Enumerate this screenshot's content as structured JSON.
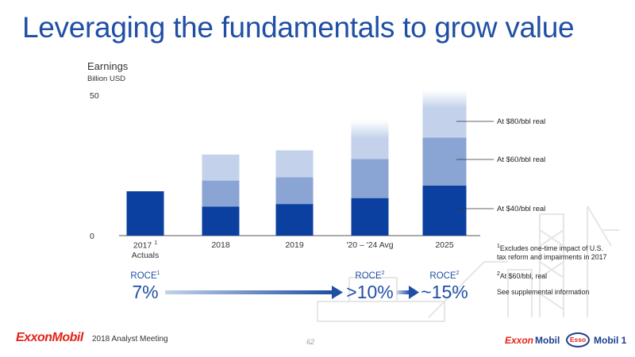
{
  "slide": {
    "title": "Leveraging the fundamentals to grow value",
    "meeting": "2018 Analyst Meeting",
    "page_number": "62",
    "company_logo": "ExxonMobil",
    "brand_logos": [
      "Exxon",
      "Mobil",
      "Esso",
      "Mobil 1"
    ]
  },
  "roce": [
    {
      "label": "ROCE",
      "sup": "1",
      "value": "7%"
    },
    {
      "label": "ROCE",
      "sup": "2",
      "value": ">10%"
    },
    {
      "label": "ROCE",
      "sup": "2",
      "value": "~15%"
    }
  ],
  "footnotes": {
    "f1_sup": "1",
    "f1_line1": "Excludes one-time impact of  U.S.",
    "f1_line2": "tax reform and impairments in 2017",
    "f2_sup": "2",
    "f2": "At $60/bbl, real",
    "f3": "See supplemental information"
  },
  "colors": {
    "dark": "#0b40a0",
    "mid": "#8aa5d3",
    "light": "#c3d2ea",
    "title": "#1f4fa5",
    "brand_red": "#e2231a"
  },
  "chart_data": {
    "type": "bar",
    "title": "Earnings",
    "ylabel": "Billion USD",
    "ylim": [
      0,
      50
    ],
    "yticks": [
      "0",
      "50"
    ],
    "categories": [
      "2017",
      "2018",
      "2019",
      "'20 – '24 Avg",
      "2025"
    ],
    "category_sup": [
      "1",
      "",
      "",
      "",
      ""
    ],
    "category_sub": [
      "Actuals",
      "",
      "",
      "",
      ""
    ],
    "series": [
      {
        "name": "At $40/bbl real",
        "values": [
          15.7,
          10.3,
          11.2,
          13.3,
          17.7
        ]
      },
      {
        "name": "At $60/bbl real",
        "values": [
          0,
          9.2,
          9.5,
          13.8,
          17.0
        ]
      },
      {
        "name": "At $80/bbl real",
        "values": [
          0,
          9.2,
          9.5,
          13.6,
          16.7
        ]
      }
    ],
    "series_label_order": [
      "At $80/bbl real",
      "At $60/bbl real",
      "At $40/bbl real"
    ],
    "legend": "right"
  }
}
